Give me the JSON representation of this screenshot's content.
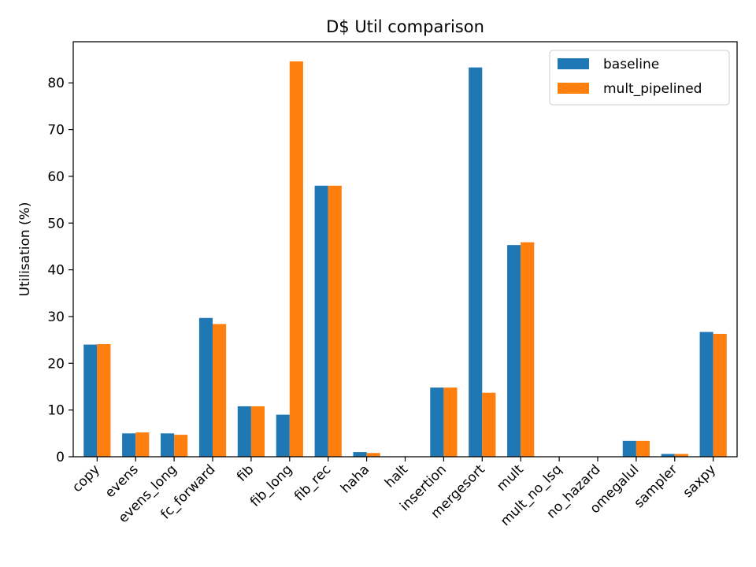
{
  "chart_data": {
    "type": "bar",
    "title": "D$ Util comparison",
    "xlabel": "",
    "ylabel": "Utilisation (%)",
    "categories": [
      "copy",
      "evens",
      "evens_long",
      "fc_forward",
      "fib",
      "fib_long",
      "fib_rec",
      "haha",
      "halt",
      "insertion",
      "mergesort",
      "mult",
      "mult_no_lsq",
      "no_hazard",
      "omegalul",
      "sampler",
      "saxpy"
    ],
    "series": [
      {
        "name": "baseline",
        "color": "#1f77b4",
        "values": [
          24.0,
          5.0,
          5.0,
          29.7,
          10.8,
          9.0,
          58.0,
          1.0,
          0.0,
          14.8,
          83.3,
          45.3,
          0.0,
          0.0,
          3.4,
          0.6,
          26.7
        ]
      },
      {
        "name": "mult_pipelined",
        "color": "#ff7f0e",
        "values": [
          24.1,
          5.2,
          4.7,
          28.4,
          10.8,
          84.6,
          58.0,
          0.8,
          0.0,
          14.8,
          13.7,
          45.9,
          0.0,
          0.0,
          3.4,
          0.6,
          26.3
        ]
      }
    ],
    "ylim": [
      0,
      88.8
    ],
    "yticks": [
      0,
      10,
      20,
      30,
      40,
      50,
      60,
      70,
      80
    ],
    "grid": false,
    "legend_position": "top-right"
  }
}
